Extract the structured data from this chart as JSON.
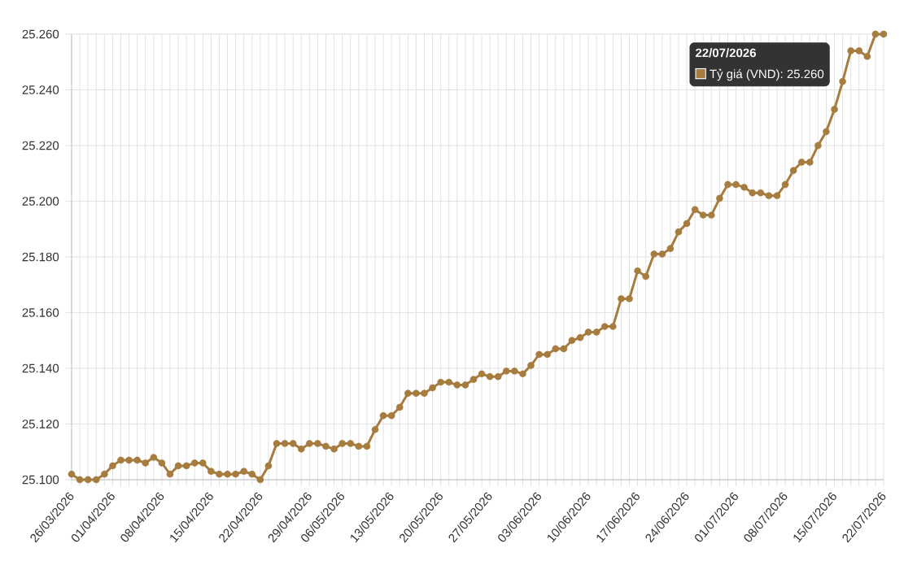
{
  "chart_data": {
    "type": "line",
    "categories": [
      "26/03/2026",
      null,
      null,
      null,
      null,
      "01/04/2026",
      null,
      null,
      null,
      null,
      null,
      "08/04/2026",
      null,
      null,
      null,
      null,
      null,
      "15/04/2026",
      null,
      null,
      null,
      null,
      null,
      "22/04/2026",
      null,
      null,
      null,
      null,
      null,
      "29/04/2026",
      null,
      null,
      null,
      "06/05/2026",
      null,
      null,
      null,
      null,
      null,
      "13/05/2026",
      null,
      null,
      null,
      null,
      null,
      "20/05/2026",
      null,
      null,
      null,
      null,
      null,
      "27/05/2026",
      null,
      null,
      null,
      null,
      null,
      "03/06/2026",
      null,
      null,
      null,
      null,
      null,
      "10/06/2026",
      null,
      null,
      null,
      null,
      null,
      "17/06/2026",
      null,
      null,
      null,
      null,
      null,
      "24/06/2026",
      null,
      null,
      null,
      null,
      null,
      "01/07/2026",
      null,
      null,
      null,
      null,
      null,
      "08/07/2026",
      null,
      null,
      null,
      null,
      null,
      "15/07/2026",
      null,
      null,
      null,
      null,
      null,
      "22/07/2026"
    ],
    "series": [
      {
        "color": "#a67c3f",
        "values": [
          25102,
          25100,
          25100,
          25100,
          25102,
          25105,
          25107,
          25107,
          25107,
          25106,
          25108,
          25106,
          25102,
          25105,
          25105,
          25106,
          25106,
          25103,
          25102,
          25102,
          25102,
          25103,
          25102,
          25100,
          25105,
          25113,
          25113,
          25113,
          25111,
          25113,
          25113,
          25112,
          25111,
          25113,
          25113,
          25112,
          25112,
          25118,
          25123,
          25123,
          25126,
          25131,
          25131,
          25131,
          25133,
          25135,
          25135,
          25134,
          25134,
          25136,
          25138,
          25137,
          25137,
          25139,
          25139,
          25138,
          25141,
          25145,
          25145,
          25147,
          25147,
          25150,
          25151,
          25153,
          25153,
          25155,
          25155,
          25165,
          25165,
          25175,
          25173,
          25181,
          25181,
          25183,
          25189,
          25192,
          25197,
          25195,
          25195,
          25201,
          25206,
          25206,
          25205,
          25203,
          25203,
          25202,
          25202,
          25206,
          25211,
          25214,
          25214,
          25220,
          25225,
          25233,
          25243,
          25254,
          25254,
          25252,
          25260,
          25260
        ]
      }
    ],
    "ylim": [
      25100,
      25260
    ],
    "yticks": [
      {
        "value": 25100,
        "label": "25.100"
      },
      {
        "value": 25120,
        "label": "25.120"
      },
      {
        "value": 25140,
        "label": "25.140"
      },
      {
        "value": 25160,
        "label": "25.160"
      },
      {
        "value": 25180,
        "label": "25.180"
      },
      {
        "value": 25200,
        "label": "25.200"
      },
      {
        "value": 25220,
        "label": "25.220"
      },
      {
        "value": 25240,
        "label": "25.240"
      },
      {
        "value": 25260,
        "label": "25.260"
      }
    ],
    "grid": true,
    "marker": "circle",
    "line_style": "solid",
    "annotations": [
      "22/07/2026",
      "Tỷ giá (VND): 25.260"
    ]
  }
}
